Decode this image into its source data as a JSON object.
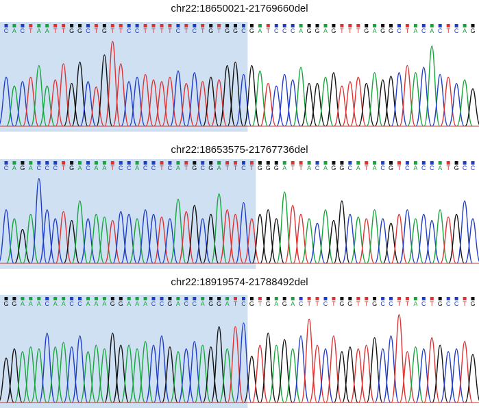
{
  "colors": {
    "A": "#15a63a",
    "C": "#1f3cc9",
    "G": "#111111",
    "T": "#e03131",
    "highlight": "#cfe0f3",
    "background": "#ffffff"
  },
  "panels": [
    {
      "title": "chr22:18650021-21769660del",
      "sequence": "CACTAATTGGCTGTTCCTTTTCTCTGTGGCGATCCCAGGAGTTTGAGGCTACACTCAG",
      "highlight_bases": 30,
      "peak_heights": [
        0.55,
        0.45,
        0.5,
        0.55,
        0.68,
        0.45,
        0.52,
        0.7,
        0.48,
        0.72,
        0.5,
        0.44,
        0.8,
        0.95,
        0.7,
        0.5,
        0.55,
        0.58,
        0.52,
        0.5,
        0.55,
        0.62,
        0.48,
        0.6,
        0.5,
        0.55,
        0.52,
        0.68,
        0.72,
        0.58,
        0.68,
        0.62,
        0.48,
        0.45,
        0.58,
        0.52,
        0.66,
        0.48,
        0.48,
        0.55,
        0.6,
        0.45,
        0.5,
        0.55,
        0.48,
        0.6,
        0.52,
        0.56,
        0.6,
        0.68,
        0.6,
        0.66,
        0.9,
        0.58,
        0.55,
        0.48,
        0.52,
        0.42
      ]
    },
    {
      "title": "chr22:18653575-21767736del",
      "sequence": "CAGACCCTGACAATCCACCTCATGCGATTCTGGGATTACAGGCATACGTCACCATGCC",
      "highlight_bases": 31,
      "peak_heights": [
        0.6,
        0.5,
        0.38,
        0.55,
        0.95,
        0.6,
        0.5,
        0.58,
        0.48,
        0.7,
        0.5,
        0.55,
        0.52,
        0.48,
        0.58,
        0.55,
        0.5,
        0.6,
        0.55,
        0.52,
        0.5,
        0.72,
        0.58,
        0.65,
        0.5,
        0.55,
        0.78,
        0.6,
        0.55,
        0.68,
        0.5,
        0.55,
        0.6,
        0.5,
        0.8,
        0.65,
        0.55,
        0.5,
        0.45,
        0.6,
        0.48,
        0.7,
        0.55,
        0.52,
        0.5,
        0.6,
        0.5,
        0.45,
        0.55,
        0.6,
        0.5,
        0.55,
        0.48,
        0.6,
        0.52,
        0.55,
        0.7,
        0.5
      ]
    },
    {
      "title": "chr22:18919574-21788492del",
      "sequence": "GGAAACAACCAAAGGAAACCGACCAGGATCGTGAGACTTCTGGTTGCCTTACTGCCTG",
      "highlight_bases": 30,
      "peak_heights": [
        0.48,
        0.58,
        0.55,
        0.6,
        0.58,
        0.75,
        0.6,
        0.65,
        0.6,
        0.72,
        0.55,
        0.62,
        0.58,
        0.75,
        0.62,
        0.62,
        0.58,
        0.66,
        0.62,
        0.72,
        0.6,
        0.55,
        0.58,
        0.66,
        0.62,
        0.6,
        0.82,
        0.58,
        0.82,
        0.86,
        0.5,
        0.62,
        0.75,
        0.62,
        0.68,
        0.58,
        0.72,
        0.9,
        0.62,
        0.58,
        0.72,
        0.55,
        0.6,
        0.58,
        0.62,
        0.7,
        0.58,
        0.72,
        0.95,
        0.55,
        0.6,
        0.58,
        0.7,
        0.62,
        0.55,
        0.58,
        0.66,
        0.52
      ]
    }
  ]
}
